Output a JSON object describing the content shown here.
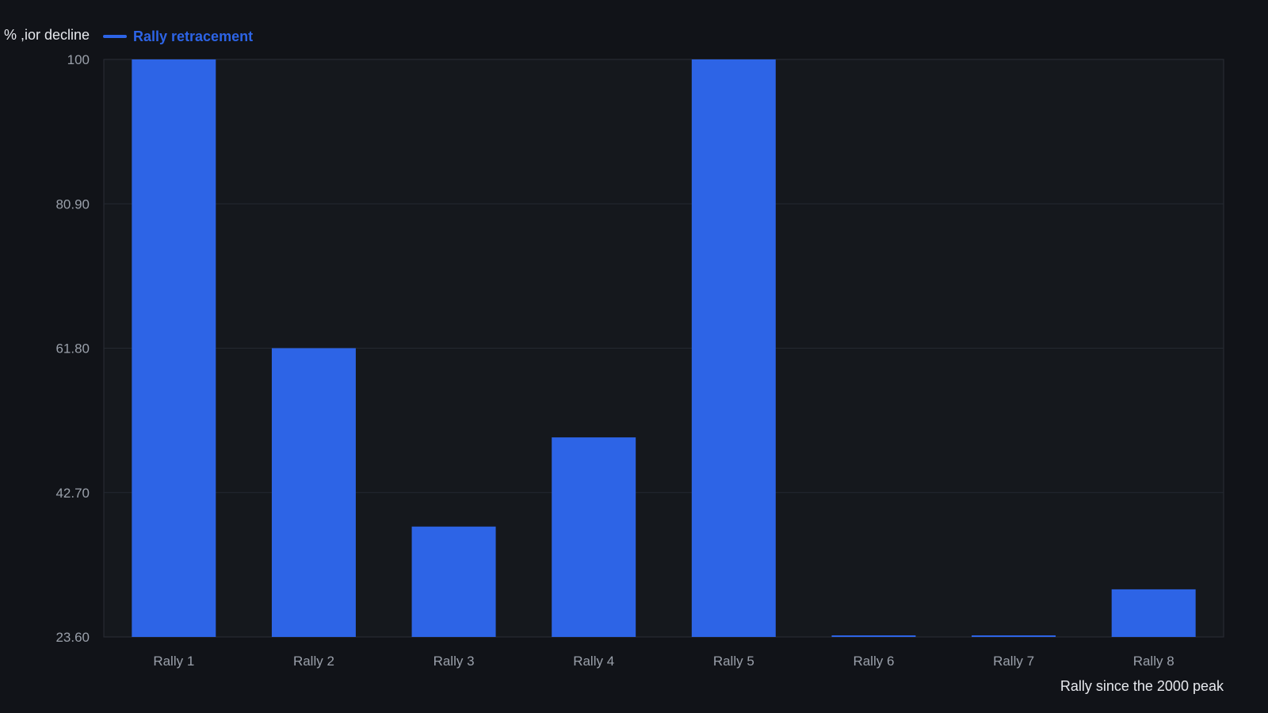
{
  "chart_data": {
    "type": "bar",
    "title": "",
    "xlabel": "Rally since the 2000 peak",
    "ylabel": "ior decline, %",
    "categories": [
      "Rally 1",
      "Rally 2",
      "Rally 3",
      "Rally 4",
      "Rally 5",
      "Rally 6",
      "Rally 7",
      "Rally 8"
    ],
    "series": [
      {
        "name": "Rally retracement",
        "values": [
          100,
          61.8,
          38.2,
          50.0,
          100,
          23.6,
          23.6,
          29.9
        ]
      }
    ],
    "ylim": [
      23.6,
      100
    ],
    "yticks": [
      "100",
      "80.90",
      "61.80",
      "42.70",
      "23.60"
    ],
    "ytick_values": [
      100,
      80.9,
      61.8,
      42.7,
      23.6
    ],
    "grid": true,
    "legend_position": "top-left",
    "colors": {
      "background": "#111318",
      "plot_background": "#15181d",
      "bar": "#2d64e6",
      "grid": "#252931",
      "tick_text": "#9aa0aa",
      "label_text": "#e7e9ee"
    }
  }
}
